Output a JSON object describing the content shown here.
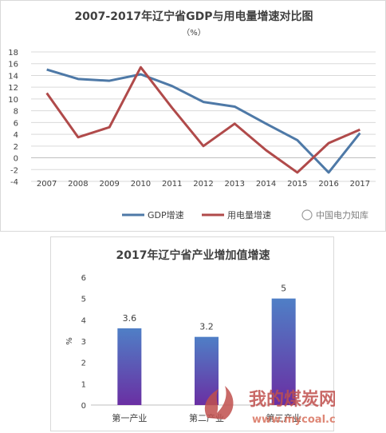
{
  "charts": [
    {
      "type": "line",
      "title": "2007-2017年辽宁省GDP与用电量增速对比图",
      "subtitle": "（%）",
      "x": [
        "2007",
        "2008",
        "2009",
        "2010",
        "2011",
        "2012",
        "2013",
        "2014",
        "2015",
        "2016",
        "2017"
      ],
      "yticks": [
        "18",
        "16",
        "14",
        "12",
        "10",
        "8",
        "6",
        "4",
        "2",
        "0",
        "-2",
        "-4"
      ],
      "ylim": [
        -4,
        18
      ],
      "grid": true,
      "legend_position": "bottom",
      "series": [
        {
          "name": "GDP增速",
          "color": "#4e79a7",
          "values": [
            15.0,
            13.4,
            13.1,
            14.2,
            12.2,
            9.5,
            8.7,
            5.8,
            3.0,
            -2.5,
            4.2
          ]
        },
        {
          "name": "用电量增速",
          "color": "#b04a4a",
          "values": [
            11.0,
            3.5,
            5.2,
            15.4,
            8.5,
            2.0,
            5.8,
            1.3,
            -2.5,
            2.5,
            4.8
          ]
        }
      ],
      "watermark": "中国电力知库"
    },
    {
      "type": "bar",
      "title": "2017年辽宁省产业增加值增速",
      "ylabel": "%",
      "ylim": [
        0,
        6
      ],
      "yticks": [
        "6",
        "5",
        "4",
        "3",
        "2",
        "1",
        "0"
      ],
      "categories": [
        "第一产业",
        "第二产业",
        "第三产业"
      ],
      "values": [
        3.6,
        3.2,
        5.0
      ],
      "data_labels": [
        "3.6",
        "3.2",
        "5"
      ],
      "bar_color_top": "#4f7fc6",
      "bar_color_bottom": "#6a2fa3",
      "watermark_text": "我的煤炭网",
      "watermark_url": "www.mycoal.cn"
    }
  ]
}
